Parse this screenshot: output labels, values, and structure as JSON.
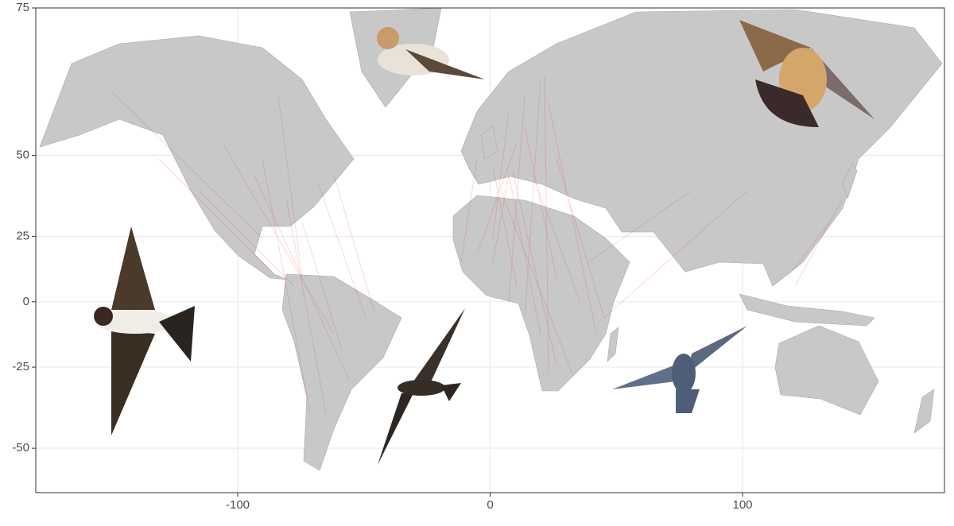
{
  "chart_data": {
    "type": "map",
    "projection": "mercator",
    "xlim": [
      -180,
      180
    ],
    "ylim": [
      -60,
      75
    ],
    "xticks": [
      -100,
      0,
      100
    ],
    "yticks": [
      -50,
      -25,
      0,
      25,
      50,
      75
    ],
    "grid": true
  }
}
